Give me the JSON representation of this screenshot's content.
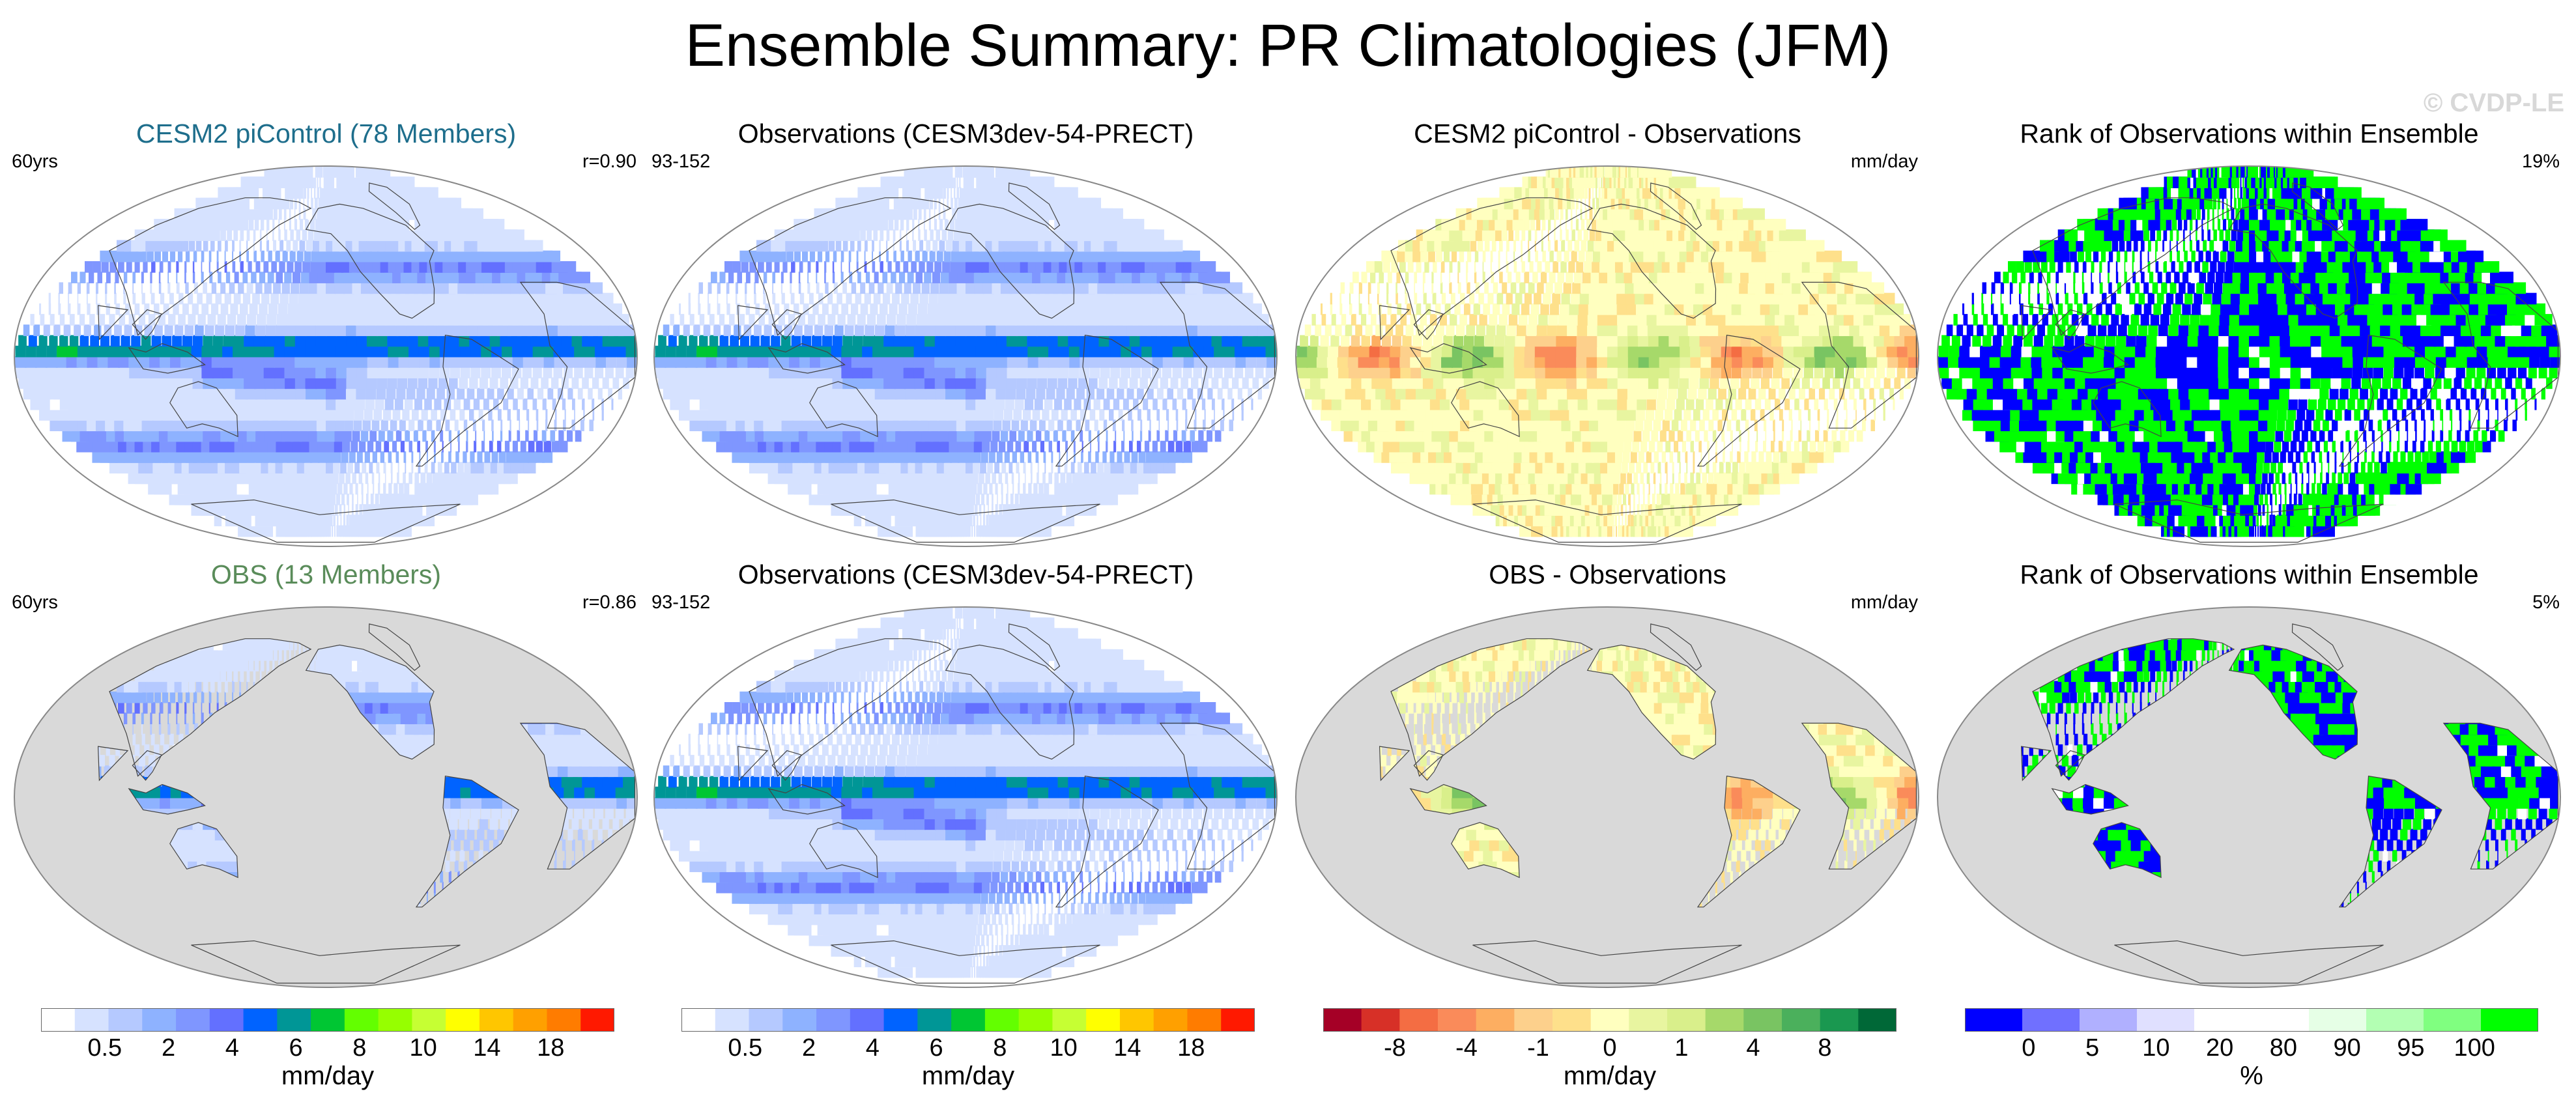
{
  "title": "Ensemble Summary: PR Climatologies (JFM)",
  "watermark": "© CVDP-LE",
  "colors": {
    "title_blue": "#1e6e8c",
    "title_green": "#5a8c5a",
    "land_mask": "#d9d9d9",
    "ocean_bg": "#ffffff"
  },
  "rows": [
    {
      "panels": [
        {
          "title": "CESM2 piControl (78 Members)",
          "left": "60yrs",
          "right": "r=0.90",
          "kind": "precip",
          "style": "blue"
        },
        {
          "title": "Observations (CESM3dev-54-PRECT)",
          "left": "93-152",
          "right": "",
          "kind": "precip",
          "style": "black"
        },
        {
          "title": "CESM2 piControl - Observations",
          "left": "",
          "right": "mm/day",
          "kind": "diff",
          "style": "black"
        },
        {
          "title": "Rank of Observations within Ensemble",
          "left": "",
          "right": "19%",
          "kind": "rank",
          "style": "black"
        }
      ]
    },
    {
      "panels": [
        {
          "title": "OBS (13 Members)",
          "left": "60yrs",
          "right": "r=0.86",
          "kind": "precip-land",
          "style": "green"
        },
        {
          "title": "Observations (CESM3dev-54-PRECT)",
          "left": "93-152",
          "right": "",
          "kind": "precip",
          "style": "black"
        },
        {
          "title": "OBS - Observations",
          "left": "",
          "right": "mm/day",
          "kind": "diff-land",
          "style": "black"
        },
        {
          "title": "Rank of Observations within Ensemble",
          "left": "",
          "right": "5%",
          "kind": "rank-land",
          "style": "black"
        }
      ]
    }
  ],
  "colorbars": [
    {
      "name": "precip-colorbar-1",
      "colors": [
        "#ffffff",
        "#d6e2ff",
        "#b5c9ff",
        "#8eb2ff",
        "#7f96ff",
        "#6370ff",
        "#0063ff",
        "#009696",
        "#00c633",
        "#63ff00",
        "#96ff00",
        "#c6ff33",
        "#ffff00",
        "#ffc600",
        "#ffa000",
        "#ff7c00",
        "#ff1900"
      ],
      "ticks": [
        "0.5",
        "2",
        "4",
        "6",
        "8",
        "10",
        "14",
        "18"
      ],
      "unit": "mm/day"
    },
    {
      "name": "precip-colorbar-2",
      "colors": [
        "#ffffff",
        "#d6e2ff",
        "#b5c9ff",
        "#8eb2ff",
        "#7f96ff",
        "#6370ff",
        "#0063ff",
        "#009696",
        "#00c633",
        "#63ff00",
        "#96ff00",
        "#c6ff33",
        "#ffff00",
        "#ffc600",
        "#ffa000",
        "#ff7c00",
        "#ff1900"
      ],
      "ticks": [
        "0.5",
        "2",
        "4",
        "6",
        "8",
        "10",
        "14",
        "18"
      ],
      "unit": "mm/day"
    },
    {
      "name": "diff-colorbar",
      "colors": [
        "#a50026",
        "#d73027",
        "#f46d43",
        "#fa8b5a",
        "#fdae61",
        "#fdd08c",
        "#fee08b",
        "#ffffbf",
        "#e8f5a0",
        "#d9ef8b",
        "#a6d96a",
        "#79c462",
        "#4bb05c",
        "#1a9850",
        "#006837"
      ],
      "ticks": [
        "-8",
        "-4",
        "-1",
        "0",
        "1",
        "4",
        "8"
      ],
      "unit": "mm/day"
    },
    {
      "name": "rank-colorbar",
      "colors": [
        "#0000ff",
        "#7070ff",
        "#b0b0ff",
        "#e0e0ff",
        "#ffffff",
        "#ffffff",
        "#e6ffe6",
        "#b3ffb3",
        "#80ff80",
        "#00ff00"
      ],
      "ticks": [
        "0",
        "5",
        "10",
        "20",
        "80",
        "90",
        "95",
        "100"
      ],
      "unit": "%"
    }
  ]
}
